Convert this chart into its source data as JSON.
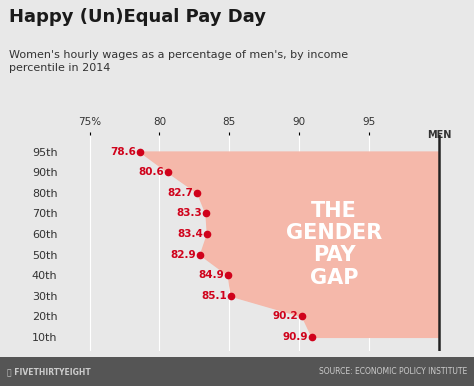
{
  "title": "Happy (Un)Equal Pay Day",
  "subtitle": "Women's hourly wages as a percentage of men's, by income\npercentile in 2014",
  "percentiles": [
    "95th",
    "90th",
    "80th",
    "70th",
    "60th",
    "50th",
    "40th",
    "30th",
    "20th",
    "10th"
  ],
  "values": [
    78.6,
    80.6,
    82.7,
    83.3,
    83.4,
    82.9,
    84.9,
    85.1,
    90.2,
    90.9
  ],
  "men_value": 100,
  "xlim": [
    73,
    101.5
  ],
  "xticks": [
    75,
    80,
    85,
    90,
    95
  ],
  "xlabel_men": "MEN",
  "gap_label": "THE\nGENDER\nPAY\nGAP",
  "dot_color": "#d0021b",
  "fill_color": "#f5b8aa",
  "bg_color": "#e8e8e8",
  "grid_color": "#ffffff",
  "footer_bg": "#555555",
  "source_text": "SOURCE: ECONOMIC POLICY INSTITUTE",
  "footer_text": "FIVETHIRTYEIGHT",
  "title_fontsize": 13,
  "subtitle_fontsize": 8,
  "label_fontsize": 8
}
